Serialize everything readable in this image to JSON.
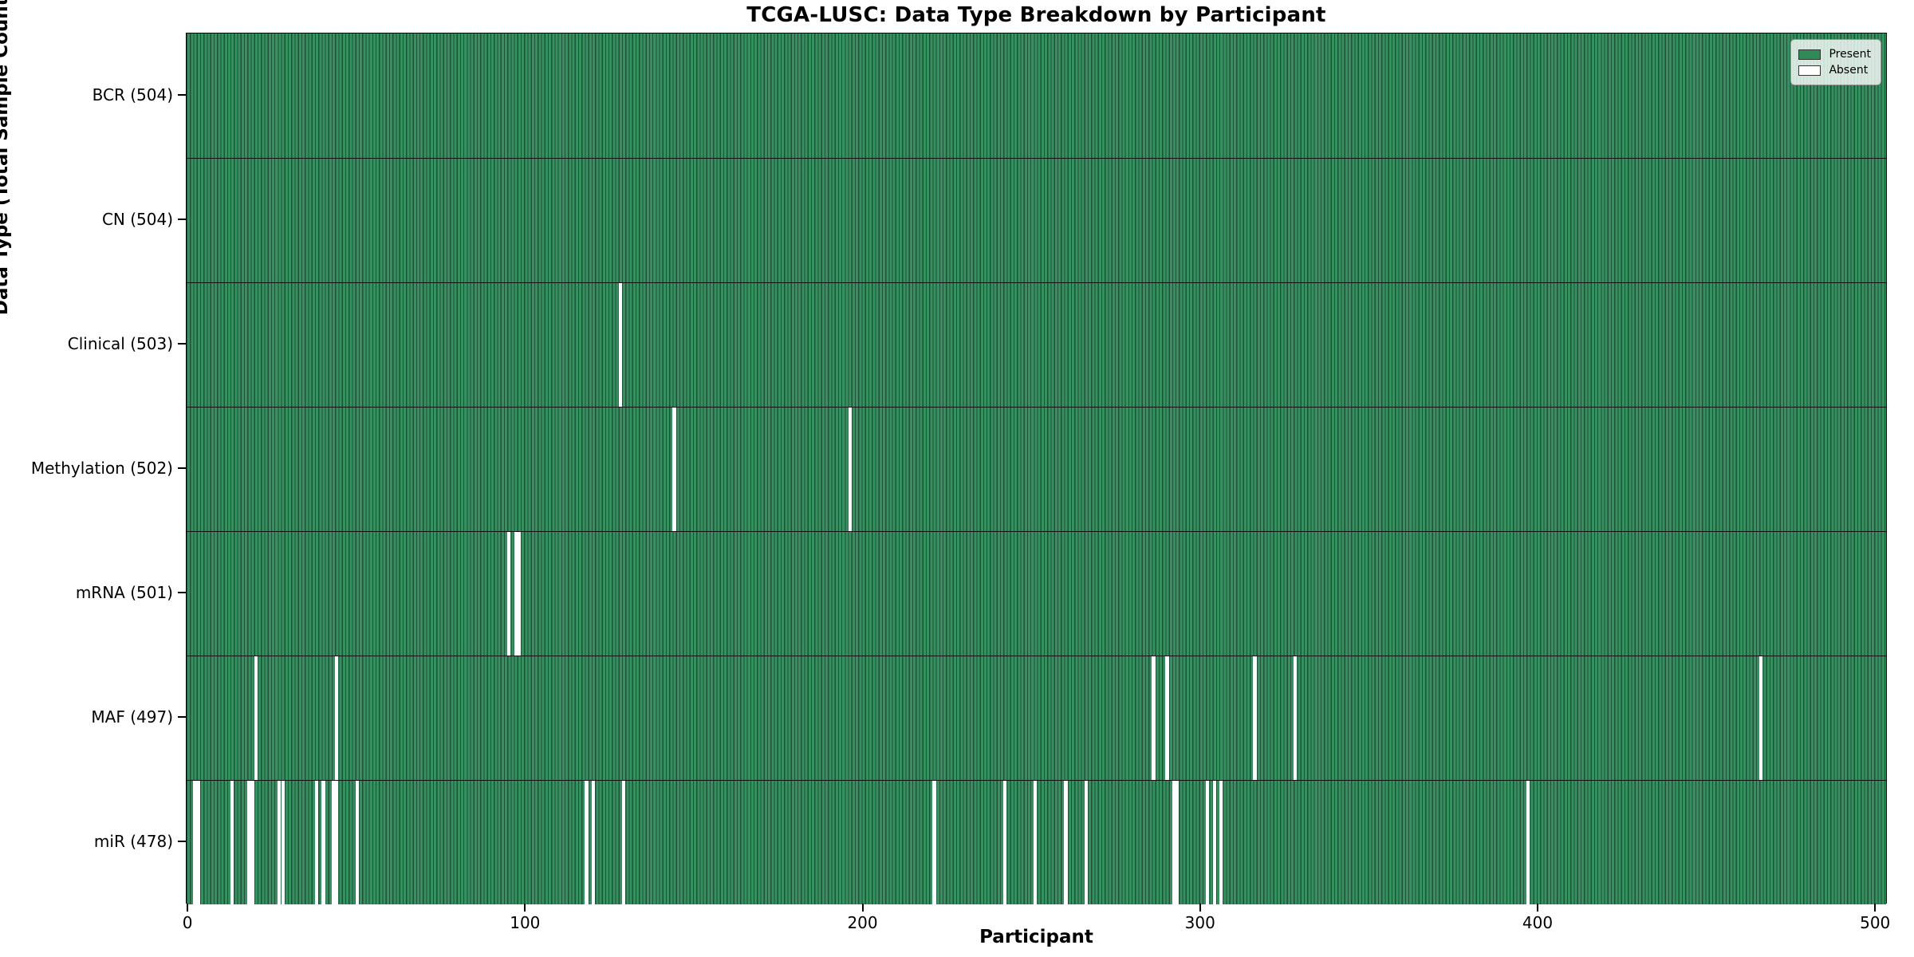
{
  "title": "TCGA-LUSC: Data Type Breakdown by Participant",
  "axes": {
    "xlabel": "Participant",
    "ylabel": "Data Type (Total Sample Count)"
  },
  "legend": {
    "present_label": "Present",
    "absent_label": "Absent"
  },
  "colors": {
    "present_fill": "#36905f",
    "bar_edge": "#1e5138",
    "legend_present": "#2e8b57",
    "absent": "#ffffff",
    "spine": "#000000"
  },
  "chart_data": {
    "type": "heatmap",
    "title": "TCGA-LUSC: Data Type Breakdown by Participant",
    "xlabel": "Participant",
    "ylabel": "Data Type (Total Sample Count)",
    "legend": [
      "Present",
      "Absent"
    ],
    "legend_position": "upper right",
    "grid": false,
    "n_participants": 504,
    "xlim": [
      0,
      504
    ],
    "x_ticks": [
      0,
      100,
      200,
      300,
      400,
      500
    ],
    "rows": [
      {
        "name": "BCR",
        "label": "BCR (504)",
        "total": 504,
        "absent_participants": []
      },
      {
        "name": "CN",
        "label": "CN (504)",
        "total": 504,
        "absent_participants": []
      },
      {
        "name": "Clinical",
        "label": "Clinical (503)",
        "total": 503,
        "absent_participants": [
          128
        ]
      },
      {
        "name": "Methylation",
        "label": "Methylation (502)",
        "total": 502,
        "absent_participants": [
          144,
          196
        ]
      },
      {
        "name": "mRNA",
        "label": "mRNA (501)",
        "total": 501,
        "absent_participants": [
          95,
          97,
          98
        ]
      },
      {
        "name": "MAF",
        "label": "MAF (497)",
        "total": 497,
        "absent_participants": [
          20,
          44,
          286,
          290,
          316,
          328,
          466
        ]
      },
      {
        "name": "miR",
        "label": "miR (478)",
        "total": 478,
        "absent_participants": [
          2,
          3,
          13,
          18,
          19,
          27,
          28,
          38,
          40,
          43,
          44,
          50,
          118,
          120,
          129,
          221,
          242,
          251,
          260,
          266,
          292,
          293,
          302,
          304,
          306,
          397
        ]
      }
    ]
  }
}
